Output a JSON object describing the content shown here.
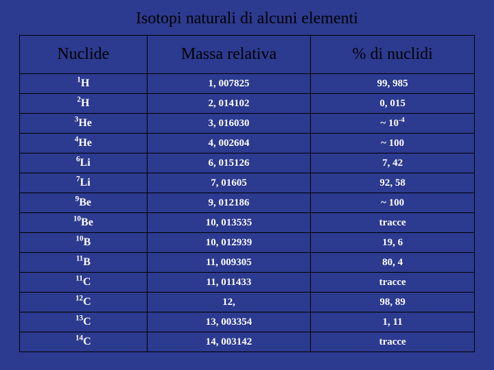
{
  "title": "Isotopi naturali di alcuni elementi",
  "columns": [
    "Nuclide",
    "Massa relativa",
    "% di nuclidi"
  ],
  "colors": {
    "background": "#2c3a8f",
    "header_text": "#000000",
    "cell_text": "#ffffff",
    "border": "#000000"
  },
  "typography": {
    "font_family": "Times New Roman",
    "title_fontsize_pt": 18,
    "header_fontsize_pt": 18,
    "cell_fontsize_pt": 11
  },
  "rows": [
    {
      "mass_sup": "1",
      "symbol": "H",
      "mass": "1, 007825",
      "percent": "99, 985",
      "percent_sup": ""
    },
    {
      "mass_sup": "2",
      "symbol": "H",
      "mass": "2, 014102",
      "percent": "0, 015",
      "percent_sup": ""
    },
    {
      "mass_sup": "3",
      "symbol": "He",
      "mass": "3, 016030",
      "percent": "~ 10",
      "percent_sup": "-4"
    },
    {
      "mass_sup": "4",
      "symbol": "He",
      "mass": "4, 002604",
      "percent": "~ 100",
      "percent_sup": ""
    },
    {
      "mass_sup": "6",
      "symbol": "Li",
      "mass": "6, 015126",
      "percent": "7, 42",
      "percent_sup": ""
    },
    {
      "mass_sup": "7",
      "symbol": "Li",
      "mass": "7, 01605",
      "percent": "92, 58",
      "percent_sup": ""
    },
    {
      "mass_sup": "9",
      "symbol": "Be",
      "mass": "9, 012186",
      "percent": "~ 100",
      "percent_sup": ""
    },
    {
      "mass_sup": "10",
      "symbol": "Be",
      "mass": "10, 013535",
      "percent": "tracce",
      "percent_sup": ""
    },
    {
      "mass_sup": "10",
      "symbol": "B",
      "mass": "10, 012939",
      "percent": "19, 6",
      "percent_sup": ""
    },
    {
      "mass_sup": "11",
      "symbol": "B",
      "mass": "11, 009305",
      "percent": "80, 4",
      "percent_sup": ""
    },
    {
      "mass_sup": "11",
      "symbol": "C",
      "mass": "11, 011433",
      "percent": "tracce",
      "percent_sup": ""
    },
    {
      "mass_sup": "12",
      "symbol": "C",
      "mass": "12, ",
      "percent": "98, 89",
      "percent_sup": ""
    },
    {
      "mass_sup": "13",
      "symbol": "C",
      "mass": "13, 003354",
      "percent": "1, 11",
      "percent_sup": ""
    },
    {
      "mass_sup": "14",
      "symbol": "C",
      "mass": "14, 003142",
      "percent": "tracce",
      "percent_sup": ""
    }
  ]
}
